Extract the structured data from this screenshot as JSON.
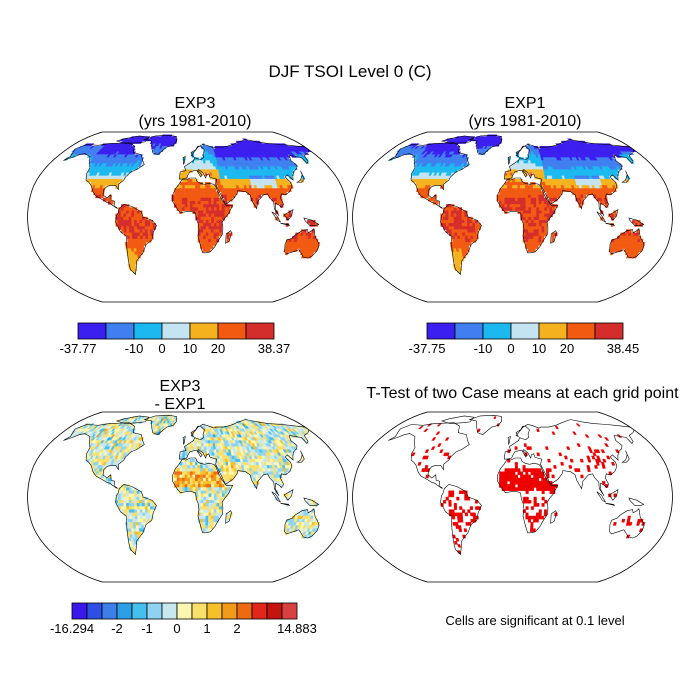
{
  "figure": {
    "title": "DJF TSOI Level 0 (C)",
    "footnote": "Cells are significant at 0.1 level"
  },
  "chart_data": [
    {
      "type": "heatmap",
      "panel": "top-left",
      "title_line1": "EXP3",
      "title_line2": "(yrs 1981-2010)",
      "projection": "Robinson",
      "colorbar": {
        "labels": [
          "-37.77",
          "-10",
          "0",
          "10",
          "20",
          "38.37"
        ],
        "bin_edges": [
          -37.77,
          -20,
          -10,
          0,
          10,
          20,
          30,
          38.37
        ],
        "colors": [
          "#3b1ef0",
          "#3f7ff0",
          "#1bb9f0",
          "#c4e4f2",
          "#f5b21e",
          "#f25a12",
          "#d52c2c"
        ]
      }
    },
    {
      "type": "heatmap",
      "panel": "top-right",
      "title_line1": "EXP1",
      "title_line2": "(yrs 1981-2010)",
      "projection": "Robinson",
      "colorbar": {
        "labels": [
          "-37.75",
          "-10",
          "0",
          "10",
          "20",
          "38.45"
        ],
        "bin_edges": [
          -37.75,
          -20,
          -10,
          0,
          10,
          20,
          30,
          38.45
        ],
        "colors": [
          "#3b1ef0",
          "#3f7ff0",
          "#1bb9f0",
          "#c4e4f2",
          "#f5b21e",
          "#f25a12",
          "#d52c2c"
        ]
      }
    },
    {
      "type": "heatmap",
      "panel": "bottom-left",
      "title_line1": "EXP3",
      "title_line2": "- EXP1",
      "projection": "Robinson",
      "colorbar": {
        "labels": [
          "-16.294",
          "-2",
          "-1",
          "0",
          "1",
          "2",
          "14.883"
        ],
        "colors": [
          "#3a18ec",
          "#2d4fe6",
          "#3d7fe8",
          "#2a9fe6",
          "#44bfee",
          "#8fd3f0",
          "#c8e8f0",
          "#fbf6b0",
          "#f9e06a",
          "#f5c02a",
          "#f29a1a",
          "#ee6a10",
          "#e2261a",
          "#c41410",
          "#d94040"
        ]
      }
    },
    {
      "type": "heatmap",
      "panel": "bottom-right",
      "title": "T-Test of two Case means at each grid point",
      "projection": "Robinson",
      "significance_color": "#ee0000"
    }
  ]
}
